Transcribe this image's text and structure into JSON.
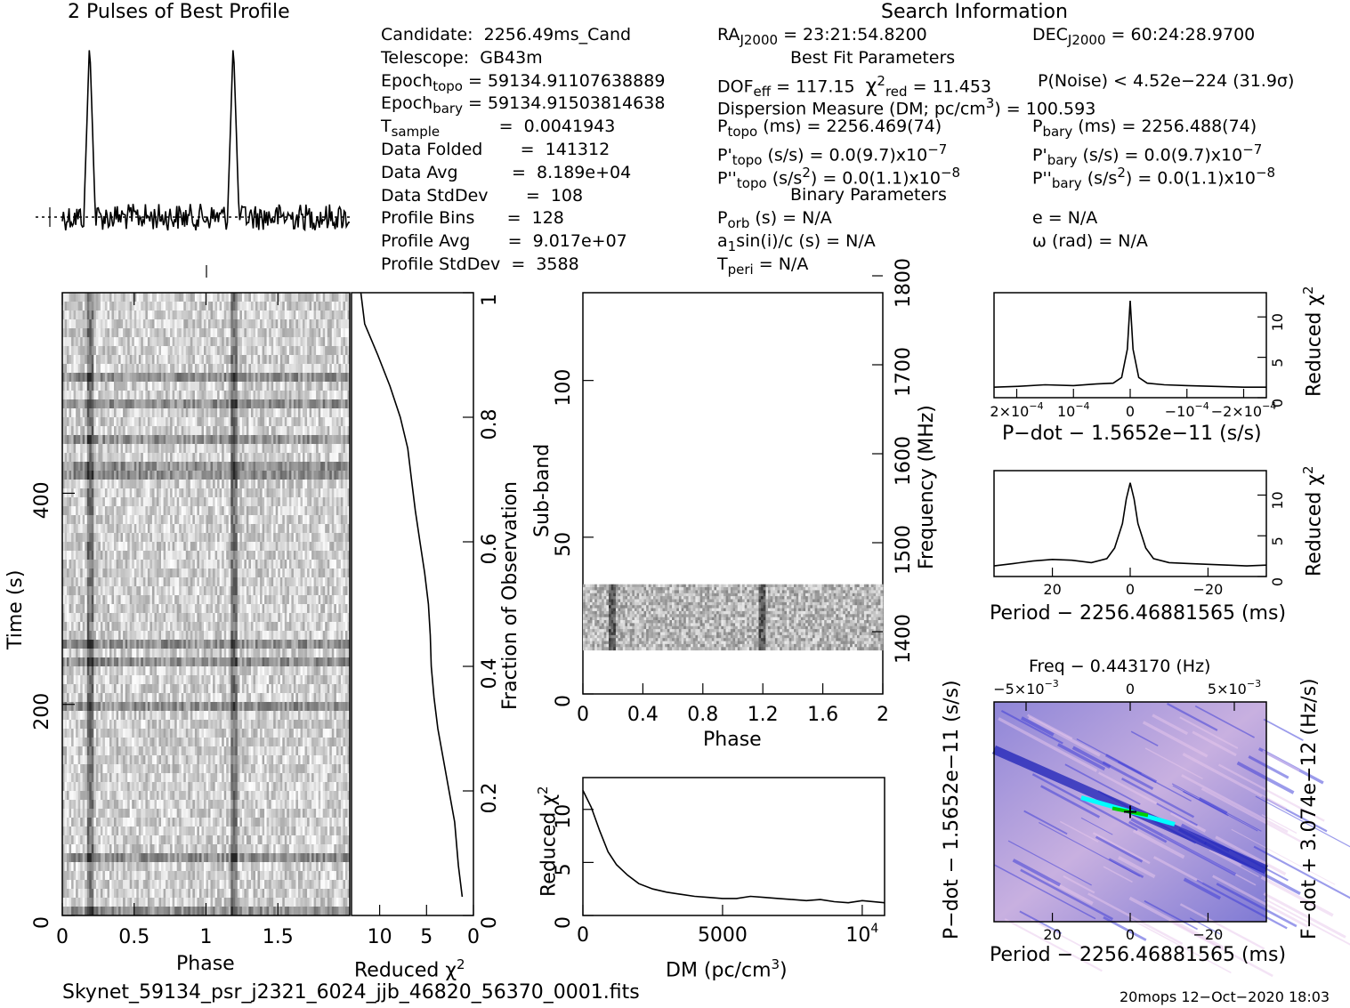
{
  "header": {
    "profile_title": "2 Pulses of Best Profile",
    "search_title": "Search Information",
    "best_fit_title": "Best Fit Parameters",
    "binary_title": "Binary Parameters"
  },
  "info_left": [
    {
      "label": "Candidate:  2256.49ms_Cand"
    },
    {
      "label": "Telescope:  GB43m"
    },
    {
      "label": "Epoch",
      "sub": "topo",
      "value": " = 59134.91107638889"
    },
    {
      "label": "Epoch",
      "sub": "bary",
      "value": " = 59134.91503814638"
    },
    {
      "label": "T",
      "sub": "sample",
      "value": "           =  0.0041943"
    },
    {
      "label": "Data Folded",
      "value": "       =  141312"
    },
    {
      "label": "Data Avg",
      "value": "          =  8.189e+04"
    },
    {
      "label": "Data StdDev",
      "value": "       =  108"
    },
    {
      "label": "Profile Bins",
      "value": "      =  128"
    },
    {
      "label": "Profile Avg",
      "value": "       =  9.017e+07"
    },
    {
      "label": "Profile StdDev",
      "value": "  =  3588"
    }
  ],
  "info_mid": {
    "ra": "RA",
    "ra_sub": "J2000",
    "ra_value": " = 23:21:54.8200",
    "dof": "DOF",
    "dof_sub": "eff",
    "dof_value": " = 117.15",
    "chi": "χ",
    "chi_sub": "red",
    "chi_value": " = 11.453",
    "pnoise": "P(Noise) < 4.52e−224   (31.9σ)",
    "dm": "Dispersion Measure (DM; pc/cm",
    "dm_value": ") = 100.593",
    "ptopo": "P",
    "ptopo_sub": "topo",
    "ptopo_value": " (ms) =   2256.469(74)",
    "pdtopo": "P'",
    "pdtopo_sub": "topo",
    "pdtopo_value": " (s/s) = 0.0(9.7)x10",
    "pdtopo_exp": "−7",
    "pddtopo": "P''",
    "pddtopo_sub": "topo",
    "pddtopo_value": " (s/s",
    "pddtopo_value2": ") = 0.0(1.1)x10",
    "pddtopo_exp": "−8",
    "porb": "P",
    "porb_sub": "orb",
    "porb_value": " (s) = N/A",
    "a1": "a",
    "a1_sub": "1",
    "a1_value": "sin(i)/c (s) = N/A",
    "tperi": "T",
    "tperi_sub": "peri",
    "tperi_value": " = N/A"
  },
  "info_right": {
    "dec": "DEC",
    "dec_sub": "J2000",
    "dec_value": " = 60:24:28.9700",
    "pbary": "P",
    "pbary_sub": "bary",
    "pbary_value": " (ms) =   2256.488(74)",
    "pdbary": "P'",
    "pdbary_sub": "bary",
    "pdbary_value": " (s/s) = 0.0(9.7)x10",
    "pdbary_exp": "−7",
    "pddbary": "P''",
    "pddbary_sub": "bary",
    "pddbary_value": " (s/s",
    "pddbary_value2": ") = 0.0(1.1)x10",
    "pddbary_exp": "−8",
    "e": "e = N/A",
    "omega": "ω (rad) = N/A"
  },
  "footer": {
    "filename": "Skynet_59134_psr_j2321_6024_jjb_46820_56370_0001.fits",
    "stamp": "20mops 12−Oct−2020 18:03"
  },
  "chart_data": [
    {
      "id": "time-phase",
      "type": "heatmap",
      "xlabel": "Phase",
      "ylabel": "Time (s)",
      "right_label": "Fraction of Observation",
      "x_ticks": [
        "0",
        "0.5",
        "1",
        "1.5"
      ],
      "y_ticks": [
        "0",
        "200",
        "400"
      ],
      "right_ticks": [
        "0",
        "0.2",
        "0.4",
        "0.6",
        "0.8",
        "1"
      ],
      "xlim": [
        0,
        2
      ],
      "ylim": [
        0,
        590
      ],
      "pulse_phases": [
        0.19,
        1.19
      ]
    },
    {
      "id": "time-chi",
      "type": "line",
      "xlabel": "Reduced χ",
      "x_ticks": [
        "10",
        "5",
        "0"
      ],
      "xlim": [
        13,
        0
      ],
      "x": [
        0.03,
        0.08,
        0.15,
        0.2,
        0.25,
        0.3,
        0.35,
        0.4,
        0.45,
        0.5,
        0.55,
        0.6,
        0.65,
        0.7,
        0.75,
        0.8,
        0.85,
        0.9,
        0.95,
        1.0
      ],
      "values": [
        1.2,
        1.6,
        2.0,
        2.6,
        3.2,
        3.8,
        4.2,
        4.5,
        4.6,
        4.8,
        5.2,
        5.7,
        6.2,
        6.6,
        7.0,
        7.8,
        8.9,
        10.2,
        11.6,
        12.0
      ]
    },
    {
      "id": "subband-phase",
      "type": "heatmap",
      "xlabel": "Phase",
      "ylabel": "Sub-band",
      "right_label": "Frequency (MHz)",
      "x_ticks": [
        "0",
        "0.4",
        "0.8",
        "1.2",
        "1.6",
        "2"
      ],
      "y_ticks": [
        "0",
        "50",
        "100"
      ],
      "right_ticks": [
        "1400",
        "1500",
        "1600",
        "1700",
        "1800"
      ],
      "xlim": [
        0,
        2
      ],
      "ylim": [
        0,
        128
      ],
      "band": [
        14,
        35
      ]
    },
    {
      "id": "dm-chi",
      "type": "line",
      "xlabel": "DM (pc/cm",
      "ylabel": "Reduced χ",
      "x_ticks": [
        "0",
        "5000",
        "10"
      ],
      "y_ticks": [
        "0",
        "5",
        "10"
      ],
      "xlim": [
        0,
        10800
      ],
      "ylim": [
        0,
        13
      ],
      "x": [
        0,
        300,
        600,
        900,
        1200,
        1600,
        2000,
        2500,
        3000,
        3500,
        4000,
        4500,
        5000,
        5500,
        6000,
        6500,
        7000,
        7500,
        8000,
        8500,
        9000,
        9500,
        10000,
        10800
      ],
      "values": [
        11.8,
        10.2,
        8.0,
        6.0,
        4.8,
        3.8,
        3.0,
        2.5,
        2.2,
        2.0,
        1.8,
        1.7,
        1.6,
        1.6,
        1.8,
        1.7,
        1.6,
        1.5,
        1.4,
        1.5,
        1.3,
        1.2,
        1.4,
        1.2
      ]
    },
    {
      "id": "pdot-chi",
      "type": "line",
      "xlabel": "P−dot − 1.5652e−11 (s/s)",
      "ylabel": "Reduced χ",
      "x_ticks": [
        "2×10",
        "10",
        "0",
        "−10",
        "−2×10"
      ],
      "y_ticks": [
        "0",
        "5",
        "10"
      ],
      "xlim": [
        2.4,
        -2.4
      ],
      "ylim": [
        0,
        13
      ],
      "x": [
        2.4,
        2.0,
        1.5,
        1.0,
        0.6,
        0.3,
        0.15,
        0.05,
        0.0,
        -0.05,
        -0.15,
        -0.3,
        -0.6,
        -1.0,
        -1.5,
        -2.0,
        -2.4
      ],
      "values": [
        1.3,
        1.4,
        1.6,
        1.5,
        1.7,
        1.8,
        2.5,
        6.0,
        12.0,
        6.0,
        2.5,
        1.8,
        1.6,
        1.5,
        1.4,
        1.3,
        1.3
      ]
    },
    {
      "id": "period-chi",
      "type": "line",
      "xlabel": "Period − 2256.46881565 (ms)",
      "ylabel": "Reduced χ",
      "x_ticks": [
        "20",
        "0",
        "−20"
      ],
      "y_ticks": [
        "0",
        "5",
        "10"
      ],
      "xlim": [
        35,
        -35
      ],
      "ylim": [
        0,
        13
      ],
      "x": [
        35,
        30,
        25,
        20,
        15,
        10,
        6,
        4,
        2,
        1,
        0,
        -1,
        -2,
        -4,
        -6,
        -10,
        -15,
        -20,
        -25,
        -30,
        -35
      ],
      "values": [
        1.3,
        1.6,
        1.9,
        2.1,
        2.0,
        1.7,
        2.2,
        3.5,
        6.5,
        9.5,
        11.5,
        9.5,
        6.5,
        3.5,
        2.2,
        1.7,
        1.6,
        1.5,
        1.4,
        1.3,
        1.4
      ]
    },
    {
      "id": "period-pdot-plane",
      "type": "heatmap",
      "title": "Freq − 0.443170 (Hz)",
      "xlabel": "Period − 2256.46881565 (ms)",
      "ylabel": "P−dot − 1.5652e−11 (s/s)",
      "right_label": "F−dot + 3.074e−12 (Hz/s)",
      "x_ticks": [
        "20",
        "0",
        "−20"
      ],
      "top_ticks": [
        "−5×10",
        "0",
        "5×10"
      ],
      "xlim": [
        35,
        -35
      ],
      "colors": [
        "#3a3ad8",
        "#e8c8ec",
        "#00ffff",
        "#00d000"
      ]
    }
  ]
}
